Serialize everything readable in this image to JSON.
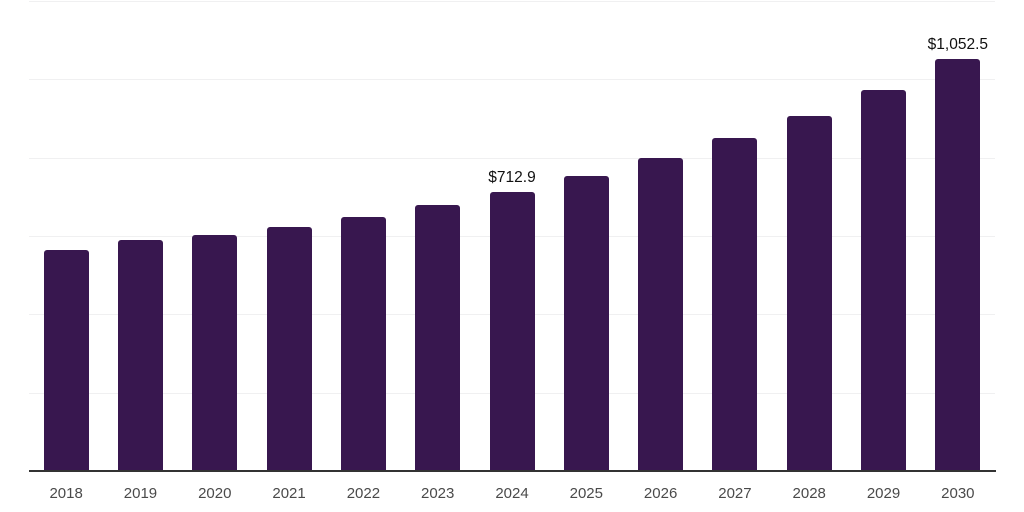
{
  "chart_data": {
    "type": "bar",
    "title": "",
    "xlabel": "",
    "ylabel": "",
    "categories": [
      "2018",
      "2019",
      "2020",
      "2021",
      "2022",
      "2023",
      "2024",
      "2025",
      "2026",
      "2027",
      "2028",
      "2029",
      "2030"
    ],
    "values": [
      563,
      590,
      603,
      623,
      648,
      678,
      712.9,
      754,
      799,
      849,
      907,
      973,
      1052.5
    ],
    "data_labels": [
      {
        "index": 6,
        "text": "$712.9"
      },
      {
        "index": 12,
        "text": "$1,052.5"
      }
    ],
    "ylim": [
      0,
      1200
    ],
    "gridline_step": 200,
    "grid": "horizontal-only",
    "legend": "none",
    "y_axis_tick_labels_visible": false
  },
  "theme": {
    "bar_color": "#38174f",
    "gridline_color": "#f0f0f1",
    "axis_color": "#333333",
    "tick_label_color": "#4a4a4a",
    "data_label_color": "#111111",
    "background": "#ffffff"
  }
}
